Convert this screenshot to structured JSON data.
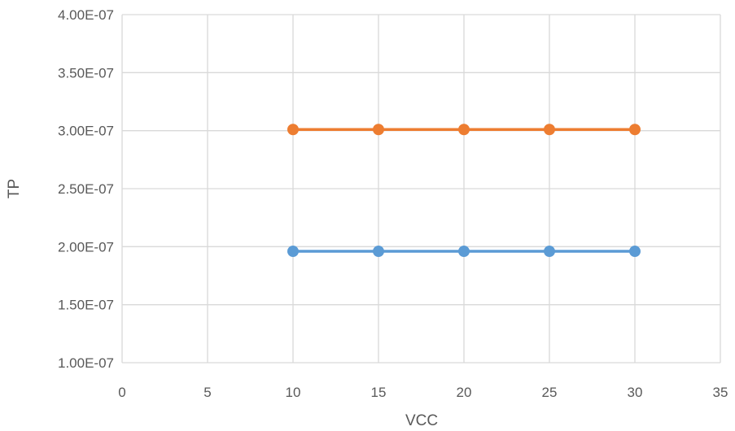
{
  "chart_data": {
    "type": "scatter",
    "title": "",
    "xlabel": "VCC",
    "ylabel": "TP",
    "xlim": [
      0,
      35
    ],
    "ylim": [
      1e-07,
      4e-07
    ],
    "x_ticks": [
      0,
      5,
      10,
      15,
      20,
      25,
      30,
      35
    ],
    "x_tick_labels": [
      "0",
      "5",
      "10",
      "15",
      "20",
      "25",
      "30",
      "35"
    ],
    "y_ticks": [
      1e-07,
      1.5e-07,
      2e-07,
      2.5e-07,
      3e-07,
      3.5e-07,
      4e-07
    ],
    "y_tick_labels": [
      "1.00E-07",
      "1.50E-07",
      "2.00E-07",
      "2.50E-07",
      "3.00E-07",
      "3.50E-07",
      "4.00E-07"
    ],
    "grid": true,
    "legend": "none",
    "series": [
      {
        "color": "#5b9bd5",
        "points": [
          {
            "x": 10,
            "y": 1.96e-07
          },
          {
            "x": 15,
            "y": 1.96e-07
          },
          {
            "x": 20,
            "y": 1.96e-07
          },
          {
            "x": 25,
            "y": 1.96e-07
          },
          {
            "x": 30,
            "y": 1.96e-07
          }
        ]
      },
      {
        "color": "#ed7d31",
        "points": [
          {
            "x": 10,
            "y": 3.01e-07
          },
          {
            "x": 15,
            "y": 3.01e-07
          },
          {
            "x": 20,
            "y": 3.01e-07
          },
          {
            "x": 25,
            "y": 3.01e-07
          },
          {
            "x": 30,
            "y": 3.01e-07
          }
        ]
      }
    ]
  }
}
